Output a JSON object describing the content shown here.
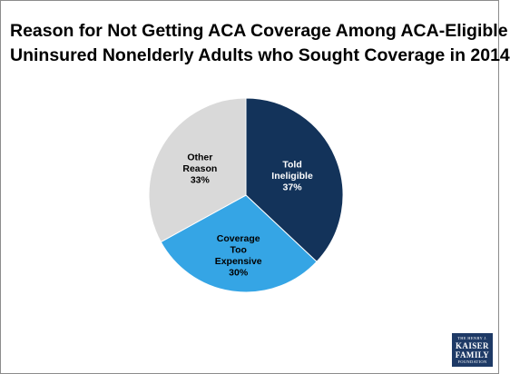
{
  "title_lines": [
    "Reason for Not Getting ACA Coverage Among ACA-Eligible",
    "Uninsured Nonelderly Adults who Sought Coverage in 2014"
  ],
  "chart_data": {
    "type": "pie",
    "title": "Reason for Not Getting ACA Coverage Among ACA-Eligible Uninsured Nonelderly Adults who Sought Coverage in 2014",
    "slices": [
      {
        "label_lines": [
          "Told",
          "Ineligible",
          "37%"
        ],
        "value": 37,
        "color": "#13335a",
        "text_color": "#ffffff"
      },
      {
        "label_lines": [
          "Coverage",
          "Too",
          "Expensive",
          "30%"
        ],
        "value": 30,
        "color": "#35a5e5",
        "text_color": "#000000"
      },
      {
        "label_lines": [
          "Other",
          "Reason",
          "33%"
        ],
        "value": 33,
        "color": "#d9d9d9",
        "text_color": "#000000"
      }
    ],
    "start_angle_deg": 0,
    "direction": "clockwise"
  },
  "logo": {
    "line1": "THE HENRY J.",
    "line2": "KAISER",
    "line3": "FAMILY",
    "line4": "FOUNDATION",
    "color": "#1e3a66"
  }
}
